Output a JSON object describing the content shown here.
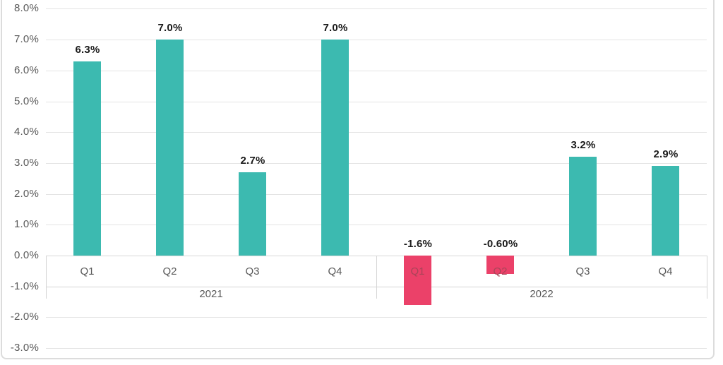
{
  "chart_data": {
    "type": "bar",
    "title": "",
    "ylabel": "",
    "xlabel": "",
    "ylim": [
      -3,
      8
    ],
    "grid": true,
    "legend": "none",
    "y_tick_values": [
      8,
      7,
      6,
      5,
      4,
      3,
      2,
      1,
      0,
      -1,
      -2,
      -3
    ],
    "y_tick_labels": [
      "8.0%",
      "7.0%",
      "6.0%",
      "5.0%",
      "4.0%",
      "3.0%",
      "2.0%",
      "1.0%",
      "0.0%",
      "-1.0%",
      "-2.0%",
      "-3.0%"
    ],
    "groups": [
      {
        "label": "2021",
        "categories": [
          "Q1",
          "Q2",
          "Q3",
          "Q4"
        ],
        "values": [
          6.3,
          7.0,
          2.7,
          7.0
        ],
        "data_labels": [
          "6.3%",
          "7.0%",
          "2.7%",
          "7.0%"
        ]
      },
      {
        "label": "2022",
        "categories": [
          "Q1",
          "Q2",
          "Q3",
          "Q4"
        ],
        "values": [
          -1.6,
          -0.6,
          3.2,
          2.9
        ],
        "data_labels": [
          "-1.6%",
          "-0.60%",
          "3.2%",
          "2.9%"
        ]
      }
    ],
    "colors": {
      "positive_bar": "#3cbab0",
      "negative_bar": "#eb4169",
      "axis_text": "#595959",
      "data_label_text": "#1a1a1a",
      "category_label_on_bar": "#a84458",
      "gridline": "#e4e4e4",
      "zero_axis_line": "#d8d8d8",
      "category_box_border": "#d4d4d4",
      "frame_border": "#dcdcdc"
    }
  }
}
